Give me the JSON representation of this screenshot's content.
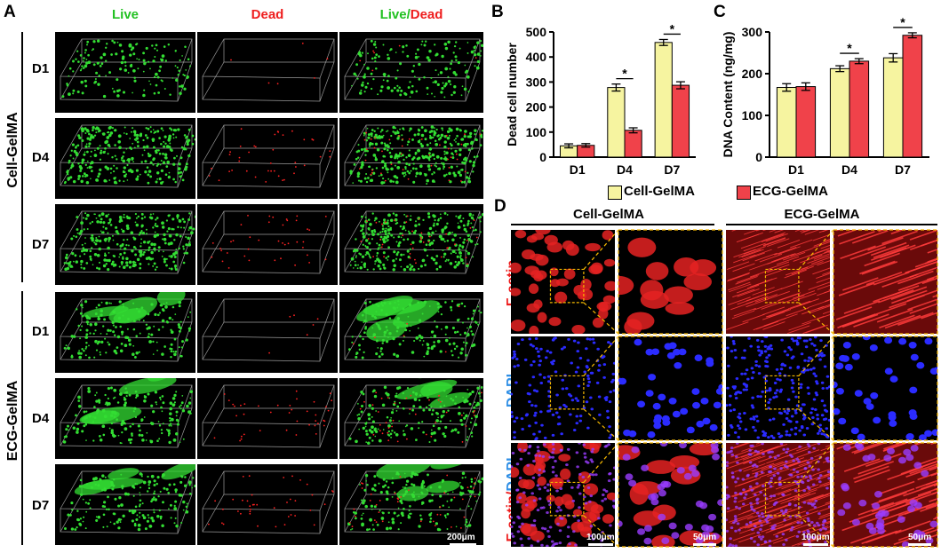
{
  "panel_letters": {
    "a": "A",
    "b": "B",
    "c": "C",
    "d": "D"
  },
  "panel_a": {
    "col_live": "Live",
    "col_dead": "Dead",
    "col_merge_live": "Live",
    "col_merge_sep": "/",
    "col_merge_dead": "Dead",
    "group_cell": "Cell-GelMA",
    "group_ecg": "ECG-GelMA",
    "rows": [
      "D1",
      "D4",
      "D7",
      "D1",
      "D4",
      "D7"
    ],
    "scale_label": "200μm"
  },
  "legend": {
    "cell": "Cell-GelMA",
    "ecg": "ECG-GelMA"
  },
  "colors": {
    "cell": "#f6f4a0",
    "ecg": "#f0424a",
    "live": "#22c122",
    "dead": "#ee1d1d",
    "dapi": "#2f8fe6"
  },
  "panel_d": {
    "head_cell": "Cell-GelMA",
    "head_ecg": "ECG-GelMA",
    "label_factin": "F-actin",
    "label_dapi": "DAPI",
    "label_merge_factin": "F-actin",
    "label_merge_sep": "/",
    "label_merge_dapi": "DAPI",
    "scale_100_a": "100μm",
    "scale_50_a": "50μm",
    "scale_100_b": "100μm",
    "scale_50_b": "50μm"
  },
  "chart_data": [
    {
      "type": "bar",
      "title": "",
      "xlabel": "",
      "ylabel": "Dead cell number",
      "categories": [
        "D1",
        "D4",
        "D7"
      ],
      "ylim": [
        0,
        500
      ],
      "yticks": [
        0,
        100,
        200,
        300,
        400,
        500
      ],
      "series": [
        {
          "name": "Cell-GelMA",
          "values": [
            45,
            278,
            458
          ],
          "errors": [
            8,
            14,
            12
          ]
        },
        {
          "name": "ECG-GelMA",
          "values": [
            47,
            107,
            287
          ],
          "errors": [
            7,
            10,
            14
          ]
        }
      ],
      "annotations": [
        "",
        "*",
        "*"
      ]
    },
    {
      "type": "bar",
      "title": "",
      "xlabel": "",
      "ylabel": "DNA Content (ng/mg)",
      "categories": [
        "D1",
        "D4",
        "D7"
      ],
      "ylim": [
        0,
        300
      ],
      "yticks": [
        0,
        100,
        200,
        300
      ],
      "series": [
        {
          "name": "Cell-GelMA",
          "values": [
            167,
            212,
            238
          ],
          "errors": [
            9,
            7,
            10
          ]
        },
        {
          "name": "ECG-GelMA",
          "values": [
            169,
            230,
            292
          ],
          "errors": [
            9,
            6,
            6
          ]
        }
      ],
      "annotations": [
        "",
        "*",
        "*"
      ]
    }
  ]
}
